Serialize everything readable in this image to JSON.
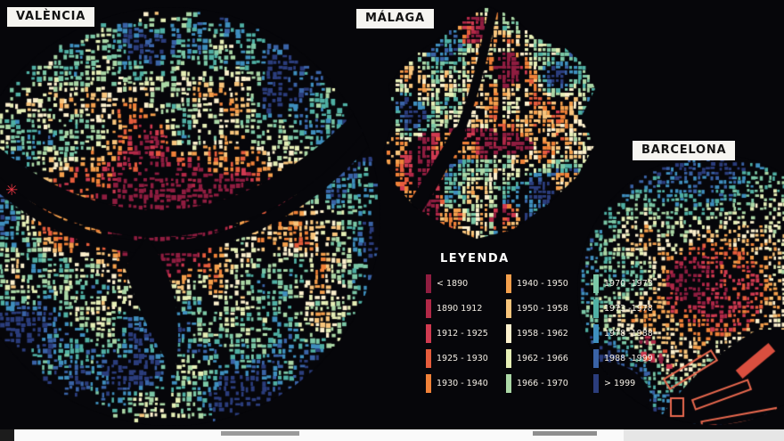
{
  "page": {
    "background": "#06060a"
  },
  "cities": [
    {
      "id": "valencia",
      "label": "VALÈNCIA"
    },
    {
      "id": "malaga",
      "label": "MÁLAGA"
    },
    {
      "id": "barcelona",
      "label": "BARCELONA"
    }
  ],
  "markers": {
    "star": "✳"
  },
  "legend": {
    "title": "LEYENDA",
    "columns": [
      {
        "entries": [
          {
            "label": "< 1890",
            "color": "#8f1d40"
          },
          {
            "label": "1890 1912",
            "color": "#b12847"
          },
          {
            "label": "1912 - 1925",
            "color": "#cf3a50"
          },
          {
            "label": "1925 - 1930",
            "color": "#e65c3c"
          },
          {
            "label": "1930 - 1940",
            "color": "#f08138"
          }
        ]
      },
      {
        "entries": [
          {
            "label": "1940 - 1950",
            "color": "#f49f4c"
          },
          {
            "label": "1950 - 1958",
            "color": "#f8c57c"
          },
          {
            "label": "1958 - 1962",
            "color": "#fcf0cd"
          },
          {
            "label": "1962 - 1966",
            "color": "#e6efb6"
          },
          {
            "label": "1966 - 1970",
            "color": "#abd7a6"
          }
        ]
      },
      {
        "entries": [
          {
            "label": "1970 -1973",
            "color": "#7bc7a6"
          },
          {
            "label": "1973 -1978",
            "color": "#50b0a4"
          },
          {
            "label": "1978 -1988",
            "color": "#3f8fbe"
          },
          {
            "label": "1988 -1999",
            "color": "#3a63a6"
          },
          {
            "label": "> 1999",
            "color": "#2b3d7c"
          }
        ]
      }
    ]
  }
}
